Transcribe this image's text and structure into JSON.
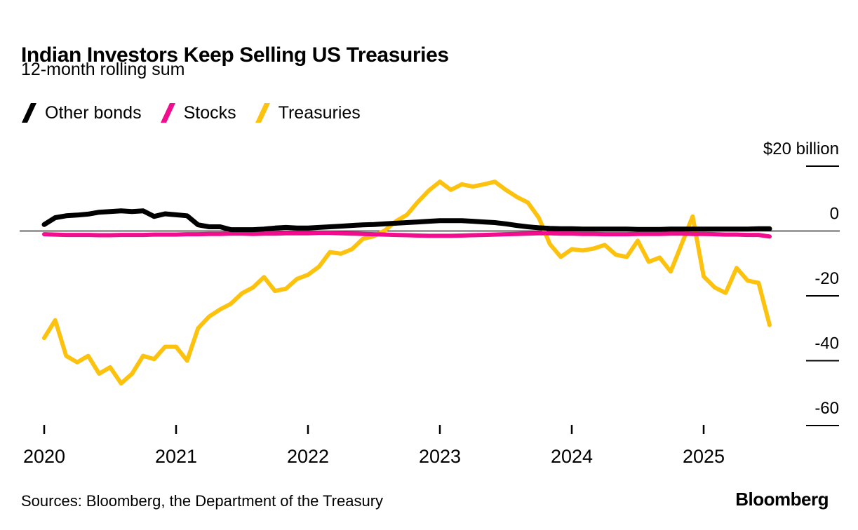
{
  "header": {
    "title": "Indian Investors Keep Selling US Treasuries",
    "subtitle": "12-month rolling sum"
  },
  "legend": [
    {
      "label": "Other bonds",
      "color": "#000000"
    },
    {
      "label": "Stocks",
      "color": "#f20d8e"
    },
    {
      "label": "Treasuries",
      "color": "#fcc20e"
    }
  ],
  "footer": {
    "sources": "Sources: Bloomberg, the Department of the Treasury",
    "logo": "Bloomberg"
  },
  "chart_data": {
    "type": "line",
    "title": "Indian Investors Keep Selling US Treasuries",
    "subtitle": "12-month rolling sum",
    "unit": "USD billion, 12-month rolling sum",
    "x_frequency": "monthly",
    "x_range": [
      "2020-01",
      "2025-07"
    ],
    "x_ticks": [
      "2020",
      "2021",
      "2022",
      "2023",
      "2024",
      "2025"
    ],
    "x_tick_every": 12,
    "ylim": [
      -65,
      24
    ],
    "grid": "zero-line only, short right-side ticks",
    "legend_position": "top-left",
    "axis_labels_position": "right",
    "y_ticks": [
      {
        "label": "$20 billion",
        "value": 20
      },
      {
        "label": "0",
        "value": 0
      },
      {
        "label": "-20",
        "value": -20
      },
      {
        "label": "-40",
        "value": -40
      },
      {
        "label": "-60",
        "value": -60
      }
    ],
    "series": [
      {
        "name": "Other bonds",
        "color": "#000000",
        "stroke_width": 7,
        "values": [
          2,
          4.1,
          4.7,
          4.9,
          5.2,
          5.8,
          6,
          6.2,
          6,
          6.2,
          4.5,
          5.3,
          5,
          4.7,
          1.9,
          1.3,
          1.3,
          0.4,
          0.4,
          0.4,
          0.6,
          0.9,
          1.1,
          0.9,
          0.9,
          1.1,
          1.3,
          1.5,
          1.7,
          1.9,
          2,
          2.2,
          2.4,
          2.6,
          2.8,
          3,
          3.2,
          3.2,
          3.2,
          3,
          2.8,
          2.6,
          2.2,
          1.7,
          1.3,
          1,
          0.8,
          0.7,
          0.7,
          0.6,
          0.6,
          0.6,
          0.6,
          0.6,
          0.5,
          0.5,
          0.5,
          0.6,
          0.6,
          0.6,
          0.6,
          0.6,
          0.6,
          0.6,
          0.6,
          0.7,
          0.7
        ]
      },
      {
        "name": "Stocks",
        "color": "#f20d8e",
        "stroke_width": 6,
        "values": [
          -1,
          -1.1,
          -1.2,
          -1.2,
          -1.2,
          -1.3,
          -1.3,
          -1.2,
          -1.2,
          -1.2,
          -1.1,
          -1.1,
          -1.1,
          -1,
          -1,
          -0.9,
          -0.9,
          -0.8,
          -0.8,
          -0.9,
          -0.8,
          -0.8,
          -0.7,
          -0.7,
          -0.7,
          -0.6,
          -0.6,
          -0.7,
          -0.8,
          -0.9,
          -1,
          -1.1,
          -1.2,
          -1.3,
          -1.4,
          -1.5,
          -1.5,
          -1.5,
          -1.4,
          -1.3,
          -1.2,
          -1.1,
          -1,
          -0.9,
          -0.8,
          -0.7,
          -0.7,
          -0.8,
          -0.8,
          -0.9,
          -0.9,
          -1,
          -1,
          -1,
          -0.9,
          -0.9,
          -0.9,
          -0.8,
          -0.8,
          -0.9,
          -0.9,
          -1,
          -1.1,
          -1.1,
          -1.2,
          -1.2,
          -1.7
        ]
      },
      {
        "name": "Treasuries",
        "color": "#fcc20e",
        "stroke_width": 6,
        "values": [
          -33,
          -27.5,
          -38.5,
          -40.5,
          -38.5,
          -44,
          -42,
          -47,
          -44,
          -38.5,
          -39.5,
          -35.7,
          -35.7,
          -40,
          -30,
          -26.4,
          -24.2,
          -22.4,
          -19.2,
          -17.4,
          -14.2,
          -18.5,
          -17.8,
          -14.8,
          -13.5,
          -11,
          -6.5,
          -7,
          -5.6,
          -2.4,
          -1.6,
          0.2,
          3,
          5,
          9,
          12.5,
          15.2,
          12.7,
          14.4,
          13.7,
          14.4,
          15.2,
          12.7,
          10.5,
          8.8,
          4.1,
          -4,
          -8,
          -5.6,
          -6,
          -5.4,
          -4.3,
          -7.3,
          -8,
          -3,
          -9.5,
          -8.2,
          -12.5,
          -4,
          4.5,
          -14,
          -17.4,
          -19.1,
          -11.4,
          -15.3,
          -16,
          -29
        ]
      }
    ]
  }
}
